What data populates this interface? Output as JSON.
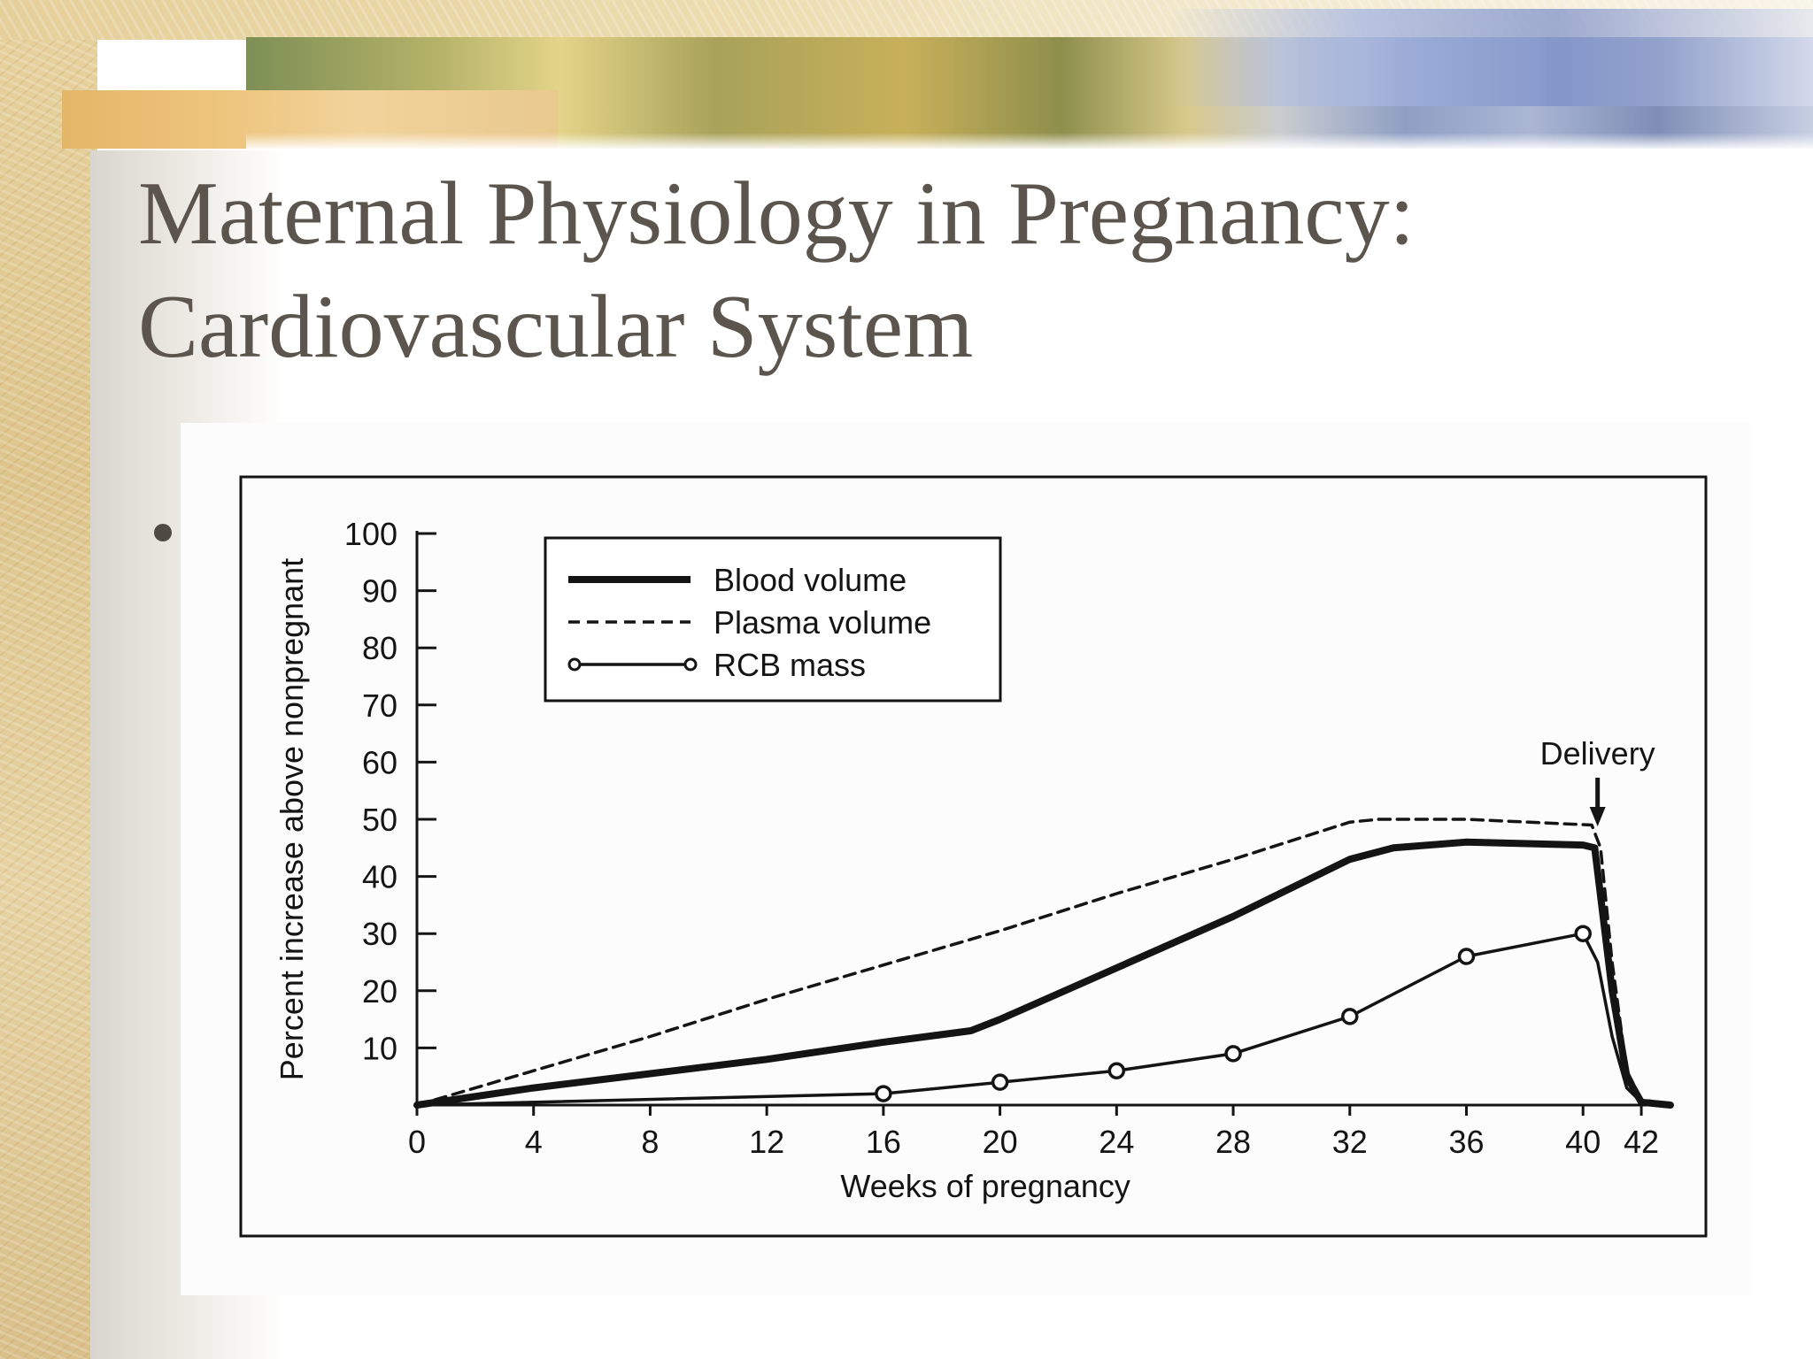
{
  "slide": {
    "title_line1": "Maternal Physiology in Pregnancy:",
    "title_line2": "Cardiovascular System",
    "bullet_symbol": "•",
    "colors": {
      "title": "#5c554d",
      "texture": "#e2cc96",
      "chart_ink": "#141414"
    }
  },
  "chart_data": {
    "type": "line",
    "title": "",
    "xlabel": "Weeks of pregnancy",
    "ylabel": "Percent increase above nonpregnant",
    "xlim": [
      0,
      43
    ],
    "ylim": [
      0,
      100
    ],
    "x_ticks": [
      0,
      4,
      8,
      12,
      16,
      20,
      24,
      28,
      32,
      36,
      40,
      42
    ],
    "y_ticks": [
      10,
      20,
      30,
      40,
      50,
      60,
      70,
      80,
      90,
      100
    ],
    "grid": false,
    "legend_position": "top-left",
    "series": [
      {
        "name": "Blood volume",
        "style": "thick-solid",
        "points": [
          [
            0,
            0
          ],
          [
            4,
            3
          ],
          [
            8,
            5.5
          ],
          [
            12,
            8
          ],
          [
            16,
            11
          ],
          [
            19,
            13
          ],
          [
            20,
            15
          ],
          [
            24,
            24
          ],
          [
            28,
            33
          ],
          [
            32,
            43
          ],
          [
            33.5,
            45
          ],
          [
            36,
            46
          ],
          [
            40,
            45.5
          ],
          [
            40.4,
            45
          ],
          [
            41,
            20
          ],
          [
            41.5,
            5
          ],
          [
            42,
            0.5
          ],
          [
            43,
            0
          ]
        ]
      },
      {
        "name": "Plasma volume",
        "style": "dashed",
        "points": [
          [
            0,
            0
          ],
          [
            4,
            6
          ],
          [
            8,
            12
          ],
          [
            12,
            18.5
          ],
          [
            16,
            24.5
          ],
          [
            20,
            30.5
          ],
          [
            24,
            37
          ],
          [
            28,
            43
          ],
          [
            32,
            49.5
          ],
          [
            33,
            50
          ],
          [
            36,
            50
          ],
          [
            40.3,
            49
          ],
          [
            40.6,
            45
          ],
          [
            41,
            25
          ],
          [
            41.5,
            6
          ],
          [
            42,
            1
          ],
          [
            43,
            0
          ]
        ]
      },
      {
        "name": "RCB mass",
        "style": "solid-open-circles",
        "points": [
          [
            0,
            0
          ],
          [
            16,
            2
          ],
          [
            20,
            4
          ],
          [
            24,
            6
          ],
          [
            28,
            9
          ],
          [
            32,
            15.5
          ],
          [
            36,
            26
          ],
          [
            40,
            30
          ],
          [
            40.5,
            25
          ],
          [
            41,
            12
          ],
          [
            41.5,
            3
          ],
          [
            42,
            0.5
          ],
          [
            43,
            0
          ]
        ],
        "markers": [
          [
            16,
            2
          ],
          [
            20,
            4
          ],
          [
            24,
            6
          ],
          [
            28,
            9
          ],
          [
            32,
            15.5
          ],
          [
            36,
            26
          ],
          [
            40,
            30
          ]
        ]
      }
    ],
    "annotations": [
      {
        "text": "Delivery",
        "x": 40.5,
        "y": 50,
        "arrow": "down"
      }
    ]
  }
}
